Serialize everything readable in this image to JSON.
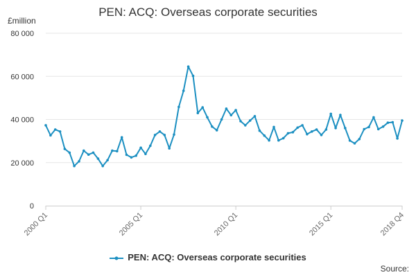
{
  "title": "PEN: ACQ: Overseas corporate securities",
  "y_unit": "£million",
  "source_label": "Source:",
  "colors": {
    "series": "#1b8fc1",
    "grid": "#e6e6e6",
    "axis": "#cccccc"
  },
  "chart_data": {
    "type": "line",
    "title": "PEN: ACQ: Overseas corporate securities",
    "ylabel": "£million",
    "ylim": [
      0,
      80000
    ],
    "yticks": [
      0,
      20000,
      40000,
      60000,
      80000
    ],
    "ytick_labels": [
      "0",
      "20 000",
      "40 000",
      "60 000",
      "80 000"
    ],
    "xtick_labels": [
      {
        "label": "2000 Q1",
        "index": 0
      },
      {
        "label": "2005 Q1",
        "index": 20
      },
      {
        "label": "2010 Q1",
        "index": 40
      },
      {
        "label": "2015 Q1",
        "index": 60
      },
      {
        "label": "2018 Q4",
        "index": 75
      }
    ],
    "grid": true,
    "legend_position": "bottom",
    "categories": [
      "2000 Q1",
      "2000 Q2",
      "2000 Q3",
      "2000 Q4",
      "2001 Q1",
      "2001 Q2",
      "2001 Q3",
      "2001 Q4",
      "2002 Q1",
      "2002 Q2",
      "2002 Q3",
      "2002 Q4",
      "2003 Q1",
      "2003 Q2",
      "2003 Q3",
      "2003 Q4",
      "2004 Q1",
      "2004 Q2",
      "2004 Q3",
      "2004 Q4",
      "2005 Q1",
      "2005 Q2",
      "2005 Q3",
      "2005 Q4",
      "2006 Q1",
      "2006 Q2",
      "2006 Q3",
      "2006 Q4",
      "2007 Q1",
      "2007 Q2",
      "2007 Q3",
      "2007 Q4",
      "2008 Q1",
      "2008 Q2",
      "2008 Q3",
      "2008 Q4",
      "2009 Q1",
      "2009 Q2",
      "2009 Q3",
      "2009 Q4",
      "2010 Q1",
      "2010 Q2",
      "2010 Q3",
      "2010 Q4",
      "2011 Q1",
      "2011 Q2",
      "2011 Q3",
      "2011 Q4",
      "2012 Q1",
      "2012 Q2",
      "2012 Q3",
      "2012 Q4",
      "2013 Q1",
      "2013 Q2",
      "2013 Q3",
      "2013 Q4",
      "2014 Q1",
      "2014 Q2",
      "2014 Q3",
      "2014 Q4",
      "2015 Q1",
      "2015 Q2",
      "2015 Q3",
      "2015 Q4",
      "2016 Q1",
      "2016 Q2",
      "2016 Q3",
      "2016 Q4",
      "2017 Q1",
      "2017 Q2",
      "2017 Q3",
      "2017 Q4",
      "2018 Q1",
      "2018 Q2",
      "2018 Q3",
      "2018 Q4"
    ],
    "series": [
      {
        "name": "PEN: ACQ: Overseas corporate securities",
        "values": [
          37300,
          32600,
          35300,
          34400,
          26300,
          24600,
          18400,
          20600,
          25500,
          23700,
          24600,
          21800,
          18400,
          21100,
          25500,
          25300,
          31700,
          23600,
          22400,
          23200,
          26900,
          24000,
          27800,
          32800,
          34400,
          32800,
          26600,
          33000,
          45800,
          53300,
          64500,
          60200,
          43000,
          45600,
          41000,
          36700,
          35000,
          40000,
          45000,
          42000,
          44300,
          39200,
          37300,
          39500,
          41500,
          34800,
          32500,
          30300,
          36500,
          30300,
          31300,
          33600,
          34100,
          36200,
          37300,
          33200,
          34400,
          35300,
          32800,
          35300,
          42600,
          36000,
          42100,
          36000,
          30200,
          28900,
          30900,
          35500,
          36500,
          41000,
          35500,
          36700,
          38500,
          38700,
          31200,
          39500
        ]
      }
    ]
  }
}
